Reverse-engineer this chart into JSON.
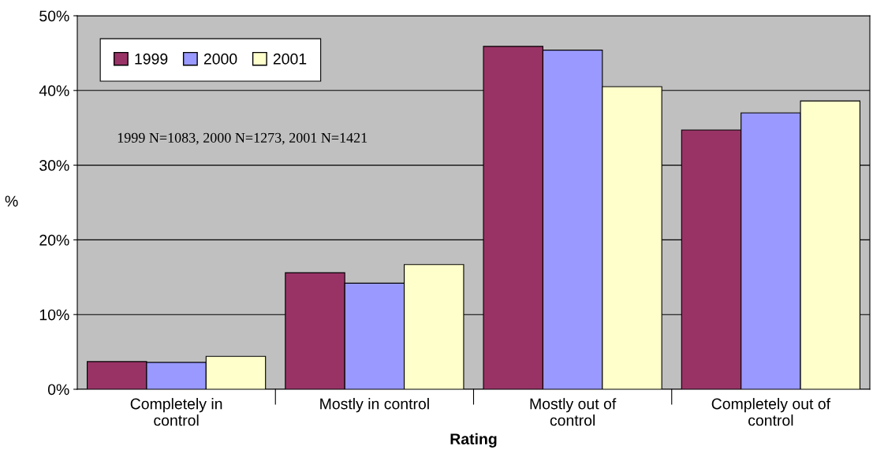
{
  "chart_data": {
    "type": "bar",
    "xlabel": "Rating",
    "ylabel": "%",
    "categories": [
      "Completely in control",
      "Mostly in control",
      "Mostly out of control",
      "Completely out of control"
    ],
    "series": [
      {
        "name": "1999",
        "color": "#993366",
        "values": [
          3.7,
          15.6,
          45.9,
          34.7
        ]
      },
      {
        "name": "2000",
        "color": "#9999ff",
        "values": [
          3.6,
          14.2,
          45.4,
          37.0
        ]
      },
      {
        "name": "2001",
        "color": "#ffffcc",
        "values": [
          4.4,
          16.7,
          40.5,
          38.6
        ]
      }
    ],
    "ylim": [
      0,
      50
    ],
    "yticks": [
      {
        "value": 0,
        "label": "0%"
      },
      {
        "value": 10,
        "label": "10%"
      },
      {
        "value": 20,
        "label": "20%"
      },
      {
        "value": 30,
        "label": "30%"
      },
      {
        "value": 40,
        "label": "40%"
      },
      {
        "value": 50,
        "label": "50%"
      }
    ],
    "grid": "y",
    "legend": "top left",
    "annotations": [
      "1999 N=1083, 2000 N=1273, 2001 N=1421"
    ]
  }
}
